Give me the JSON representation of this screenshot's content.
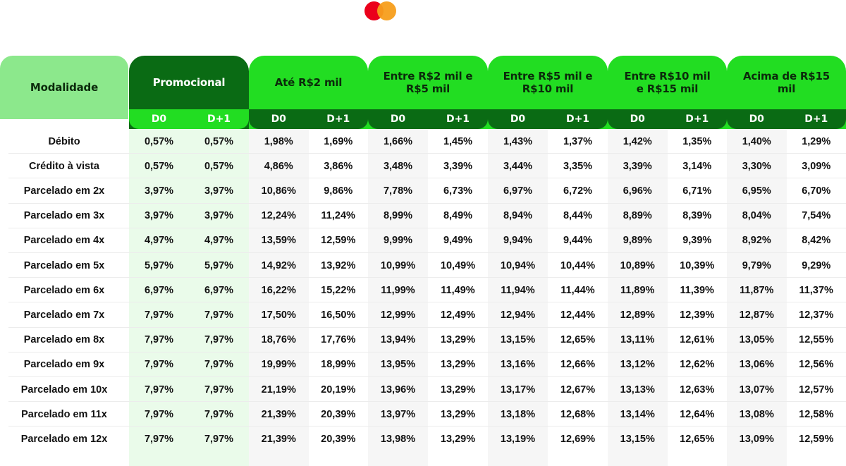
{
  "logo": {
    "colors": [
      "#eb001b",
      "#f79e1b"
    ],
    "icon": "mastercard-logo-icon"
  },
  "colors": {
    "promo_header": "#0a6b14",
    "bright_green": "#22dd22",
    "light_green": "#8ce88c",
    "promo_column": "#eafbea",
    "column_shade": "#f6f6f6"
  },
  "header": {
    "modalidade": "Modalidade",
    "groups": [
      {
        "title": "Promocional",
        "d0": "D0",
        "d1": "D+1"
      },
      {
        "title": "Até R$2 mil",
        "d0": "D0",
        "d1": "D+1"
      },
      {
        "title": "Entre R$2 mil e R$5 mil",
        "d0": "D0",
        "d1": "D+1"
      },
      {
        "title": "Entre R$5 mil e R$10 mil",
        "d0": "D0",
        "d1": "D+1"
      },
      {
        "title": "Entre R$10 mil e R$15 mil",
        "d0": "D0",
        "d1": "D+1"
      },
      {
        "title": "Acima de R$15 mil",
        "d0": "D0",
        "d1": "D+1"
      }
    ]
  },
  "rows": [
    {
      "label": "Débito",
      "values": [
        "0,57%",
        "0,57%",
        "1,98%",
        "1,69%",
        "1,66%",
        "1,45%",
        "1,43%",
        "1,37%",
        "1,42%",
        "1,35%",
        "1,40%",
        "1,29%"
      ]
    },
    {
      "label": "Crédito à vista",
      "values": [
        "0,57%",
        "0,57%",
        "4,86%",
        "3,86%",
        "3,48%",
        "3,39%",
        "3,44%",
        "3,35%",
        "3,39%",
        "3,14%",
        "3,30%",
        "3,09%"
      ]
    },
    {
      "label": "Parcelado em 2x",
      "values": [
        "3,97%",
        "3,97%",
        "10,86%",
        "9,86%",
        "7,78%",
        "6,73%",
        "6,97%",
        "6,72%",
        "6,96%",
        "6,71%",
        "6,95%",
        "6,70%"
      ]
    },
    {
      "label": "Parcelado em 3x",
      "values": [
        "3,97%",
        "3,97%",
        "12,24%",
        "11,24%",
        "8,99%",
        "8,49%",
        "8,94%",
        "8,44%",
        "8,89%",
        "8,39%",
        "8,04%",
        "7,54%"
      ]
    },
    {
      "label": "Parcelado em 4x",
      "values": [
        "4,97%",
        "4,97%",
        "13,59%",
        "12,59%",
        "9,99%",
        "9,49%",
        "9,94%",
        "9,44%",
        "9,89%",
        "9,39%",
        "8,92%",
        "8,42%"
      ]
    },
    {
      "label": "Parcelado em 5x",
      "values": [
        "5,97%",
        "5,97%",
        "14,92%",
        "13,92%",
        "10,99%",
        "10,49%",
        "10,94%",
        "10,44%",
        "10,89%",
        "10,39%",
        "9,79%",
        "9,29%"
      ]
    },
    {
      "label": "Parcelado em 6x",
      "values": [
        "6,97%",
        "6,97%",
        "16,22%",
        "15,22%",
        "11,99%",
        "11,49%",
        "11,94%",
        "11,44%",
        "11,89%",
        "11,39%",
        "11,87%",
        "11,37%"
      ]
    },
    {
      "label": "Parcelado em 7x",
      "values": [
        "7,97%",
        "7,97%",
        "17,50%",
        "16,50%",
        "12,99%",
        "12,49%",
        "12,94%",
        "12,44%",
        "12,89%",
        "12,39%",
        "12,87%",
        "12,37%"
      ]
    },
    {
      "label": "Parcelado em 8x",
      "values": [
        "7,97%",
        "7,97%",
        "18,76%",
        "17,76%",
        "13,94%",
        "13,29%",
        "13,15%",
        "12,65%",
        "13,11%",
        "12,61%",
        "13,05%",
        "12,55%"
      ]
    },
    {
      "label": "Parcelado em 9x",
      "values": [
        "7,97%",
        "7,97%",
        "19,99%",
        "18,99%",
        "13,95%",
        "13,29%",
        "13,16%",
        "12,66%",
        "13,12%",
        "12,62%",
        "13,06%",
        "12,56%"
      ]
    },
    {
      "label": "Parcelado em 10x",
      "values": [
        "7,97%",
        "7,97%",
        "21,19%",
        "20,19%",
        "13,96%",
        "13,29%",
        "13,17%",
        "12,67%",
        "13,13%",
        "12,63%",
        "13,07%",
        "12,57%"
      ]
    },
    {
      "label": "Parcelado em 11x",
      "values": [
        "7,97%",
        "7,97%",
        "21,39%",
        "20,39%",
        "13,97%",
        "13,29%",
        "13,18%",
        "12,68%",
        "13,14%",
        "12,64%",
        "13,08%",
        "12,58%"
      ]
    },
    {
      "label": "Parcelado em 12x",
      "values": [
        "7,97%",
        "7,97%",
        "21,39%",
        "20,39%",
        "13,98%",
        "13,29%",
        "13,19%",
        "12,69%",
        "13,15%",
        "12,65%",
        "13,09%",
        "12,59%"
      ]
    }
  ]
}
